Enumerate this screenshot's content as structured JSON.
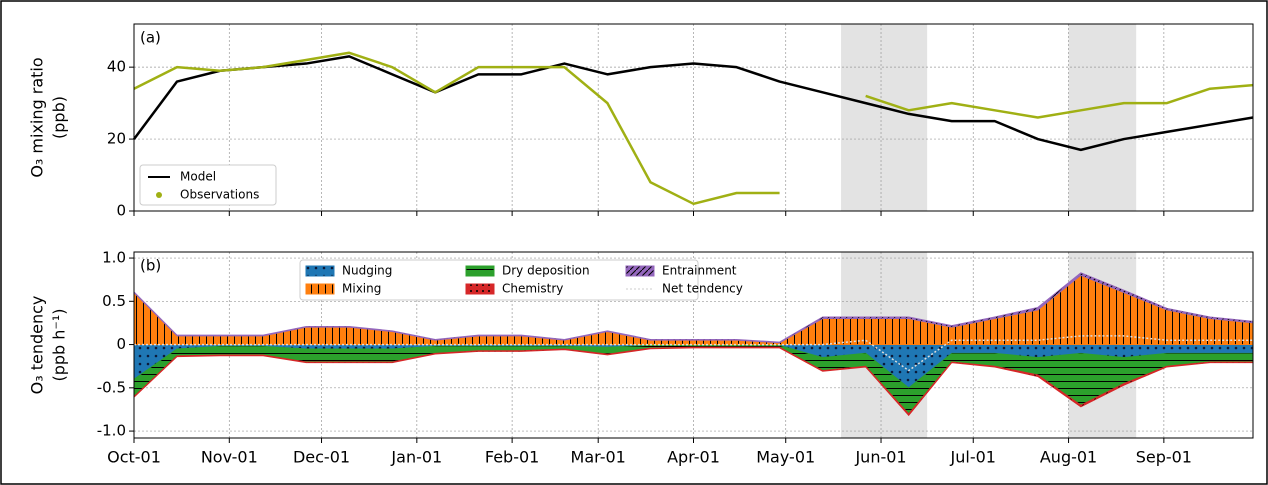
{
  "chart_data": [
    {
      "type": "line",
      "panel_label": "(a)",
      "ylabel": [
        "O₃ mixing ratio",
        "(ppb)"
      ],
      "x": [
        0,
        14,
        28,
        42,
        56,
        70,
        84,
        98,
        112,
        126,
        140,
        154,
        168,
        182,
        196,
        210,
        224,
        238,
        252,
        266,
        280,
        294,
        308,
        322,
        336,
        350,
        364
      ],
      "xlim": [
        0,
        364
      ],
      "xticks": [
        0,
        31,
        61,
        92,
        123,
        151,
        182,
        212,
        243,
        273,
        304,
        335
      ],
      "ylim": [
        0,
        52
      ],
      "yticks": [
        0,
        20,
        40
      ],
      "grid": true,
      "legend": "lower left",
      "shaded": [
        [
          230,
          258
        ],
        [
          304,
          326
        ]
      ],
      "series": [
        {
          "name": "Model",
          "color": "#000000",
          "values": [
            20,
            36,
            39,
            40,
            41,
            43,
            38,
            33,
            38,
            38,
            41,
            38,
            40,
            41,
            40,
            36,
            33,
            30,
            27,
            25,
            25,
            20,
            17,
            20,
            22,
            24,
            26
          ]
        },
        {
          "name": "Observations",
          "color": "#a0b014",
          "values": [
            34,
            40,
            39,
            40,
            42,
            44,
            40,
            33,
            40,
            40,
            40,
            30,
            8,
            2,
            5,
            5,
            null,
            32,
            28,
            30,
            28,
            26,
            28,
            30,
            30,
            34,
            35
          ]
        }
      ]
    },
    {
      "type": "area",
      "panel_label": "(b)",
      "ylabel": [
        "O₃ tendency",
        "(ppb h⁻¹)"
      ],
      "x": [
        0,
        14,
        28,
        42,
        56,
        70,
        84,
        98,
        112,
        126,
        140,
        154,
        168,
        182,
        196,
        210,
        224,
        238,
        252,
        266,
        280,
        294,
        308,
        322,
        336,
        350,
        364
      ],
      "xlim": [
        0,
        364
      ],
      "xticks": [
        {
          "value": 0,
          "label": "Oct-01"
        },
        {
          "value": 31,
          "label": "Nov-01"
        },
        {
          "value": 61,
          "label": "Dec-01"
        },
        {
          "value": 92,
          "label": "Jan-01"
        },
        {
          "value": 123,
          "label": "Feb-01"
        },
        {
          "value": 151,
          "label": "Mar-01"
        },
        {
          "value": 182,
          "label": "Apr-01"
        },
        {
          "value": 212,
          "label": "May-01"
        },
        {
          "value": 243,
          "label": "Jun-01"
        },
        {
          "value": 273,
          "label": "Jul-01"
        },
        {
          "value": 304,
          "label": "Aug-01"
        },
        {
          "value": 335,
          "label": "Sep-01"
        }
      ],
      "ylim": [
        -1.08,
        1.07
      ],
      "yticks": [
        {
          "value": -1,
          "label": "-1.0"
        },
        -0.5,
        0,
        0.5,
        {
          "value": 1,
          "label": "1.0"
        }
      ],
      "grid": true,
      "legend": "upper center",
      "shaded": [
        [
          230,
          258
        ],
        [
          304,
          326
        ]
      ],
      "series": [
        {
          "name": "Nudging",
          "color": "#1f77b4",
          "values": [
            -0.4,
            -0.05,
            -0.02,
            -0.02,
            -0.05,
            -0.05,
            -0.05,
            -0.02,
            -0.02,
            -0.02,
            -0.02,
            -0.03,
            -0.01,
            -0.01,
            -0.01,
            -0.01,
            -0.15,
            -0.1,
            -0.5,
            -0.1,
            -0.1,
            -0.15,
            -0.1,
            -0.15,
            -0.1,
            -0.1,
            -0.1
          ]
        },
        {
          "name": "Mixing",
          "color": "#ff7f0e",
          "values": [
            0.6,
            0.1,
            0.1,
            0.1,
            0.2,
            0.2,
            0.15,
            0.05,
            0.1,
            0.1,
            0.05,
            0.15,
            0.05,
            0.05,
            0.05,
            0.02,
            0.3,
            0.3,
            0.3,
            0.2,
            0.3,
            0.4,
            0.8,
            0.6,
            0.4,
            0.3,
            0.25
          ]
        },
        {
          "name": "Dry deposition",
          "color": "#2ca02c",
          "values": [
            -0.2,
            -0.08,
            -0.1,
            -0.1,
            -0.15,
            -0.15,
            -0.15,
            -0.08,
            -0.05,
            -0.05,
            -0.03,
            -0.08,
            -0.03,
            -0.02,
            -0.02,
            -0.02,
            -0.15,
            -0.15,
            -0.3,
            -0.1,
            -0.15,
            -0.2,
            -0.6,
            -0.3,
            -0.15,
            -0.1,
            -0.1
          ]
        },
        {
          "name": "Chemistry",
          "color": "#d62728",
          "values": [
            -0.01,
            -0.01,
            -0.01,
            -0.01,
            -0.01,
            -0.01,
            -0.01,
            -0.01,
            -0.01,
            -0.01,
            -0.01,
            -0.01,
            -0.01,
            -0.01,
            -0.01,
            -0.01,
            -0.01,
            -0.01,
            -0.02,
            -0.01,
            -0.01,
            -0.02,
            -0.02,
            -0.02,
            -0.01,
            -0.01,
            -0.01
          ]
        },
        {
          "name": "Entrainment",
          "color": "#9467bd",
          "values": [
            0.01,
            0.01,
            0.01,
            0.01,
            0.01,
            0.01,
            0.01,
            0.01,
            0.01,
            0.01,
            0.01,
            0.01,
            0.01,
            0.01,
            0.01,
            0.01,
            0.02,
            0.02,
            0.02,
            0.02,
            0.02,
            0.03,
            0.03,
            0.03,
            0.02,
            0.02,
            0.02
          ]
        },
        {
          "name": "Net tendency",
          "color": "#dddddd",
          "kind": "line",
          "values": [
            0,
            0,
            0,
            0,
            0,
            0,
            0,
            0,
            0,
            0,
            0,
            0,
            0,
            0,
            0,
            0,
            0,
            0.05,
            -0.3,
            0.05,
            0.05,
            0.05,
            0.1,
            0.1,
            0.05,
            0.05,
            0.05
          ]
        }
      ]
    }
  ]
}
